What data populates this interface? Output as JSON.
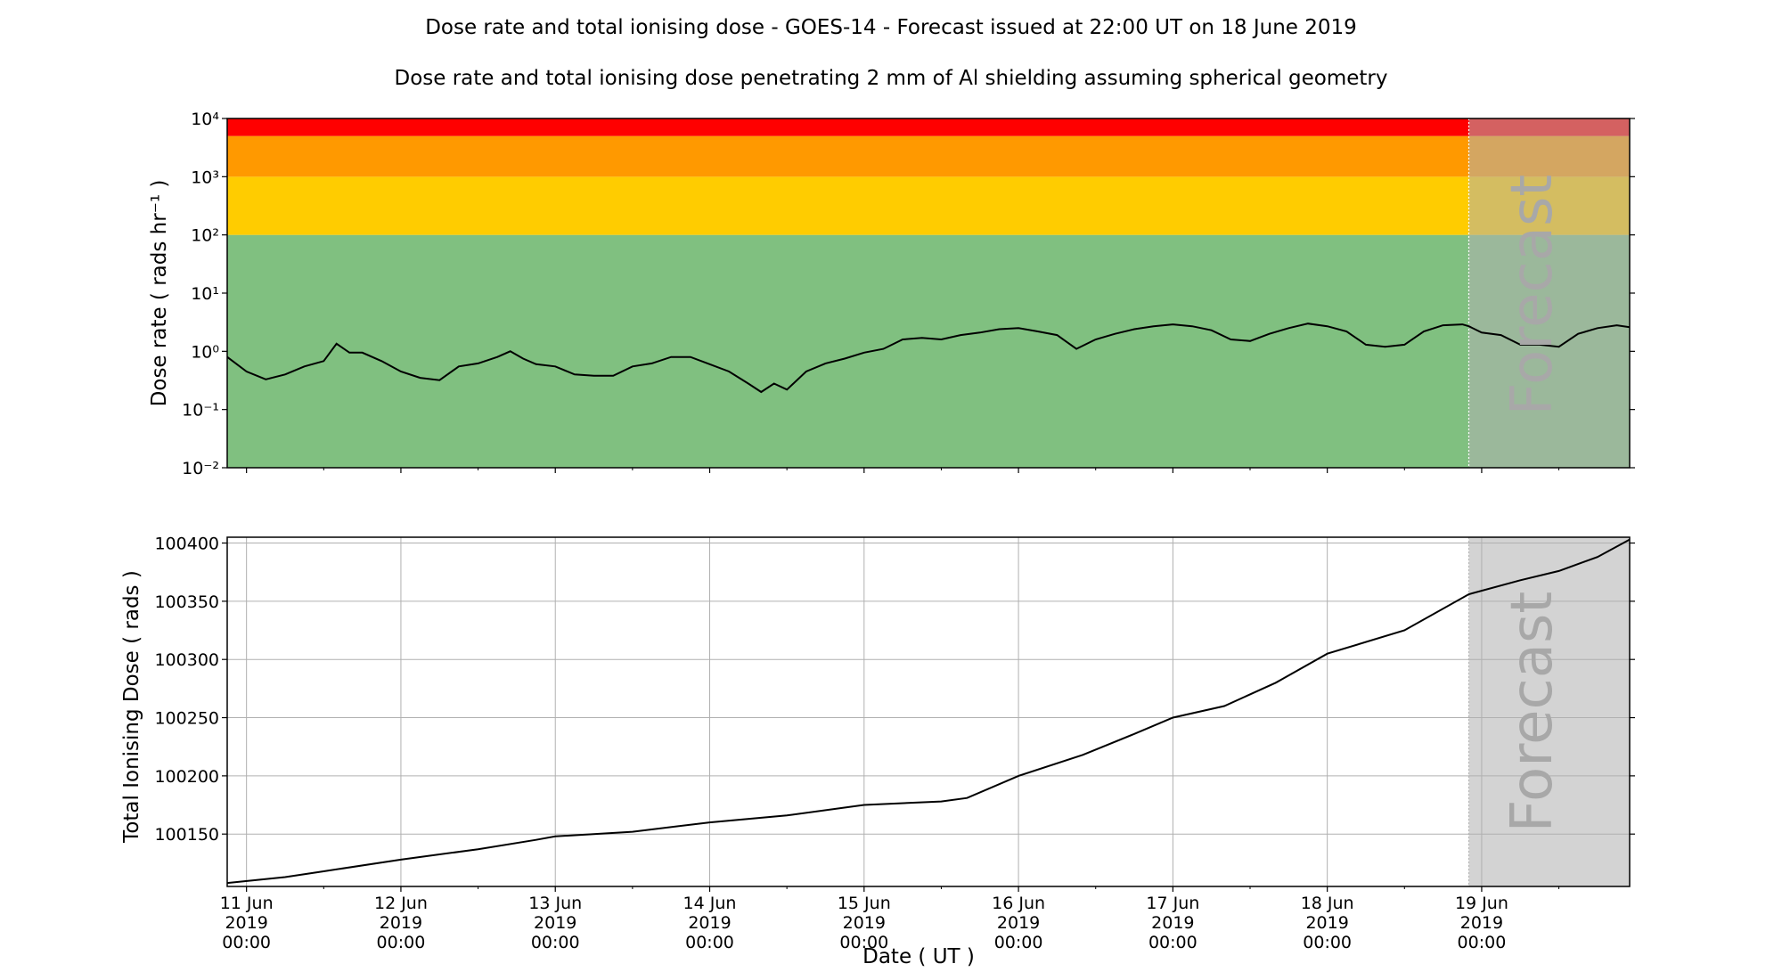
{
  "title": "Dose rate and total ionising dose - GOES-14 - Forecast issued at 22:00 UT on 18 June 2019",
  "subtitle": "Dose rate and total ionising dose penetrating 2 mm of Al shielding assuming spherical geometry",
  "forecast_label": "Forecast",
  "colors": {
    "green": "#80c080",
    "yellow": "#ffcc00",
    "orange": "#ff9900",
    "red": "#ff0000",
    "forecast_shade": "#d3d3d3",
    "line": "#000000"
  },
  "chart_data": [
    {
      "type": "line",
      "ylabel": "Dose rate ( rads hr⁻¹ )",
      "yscale": "log",
      "ylim": [
        0.01,
        10000
      ],
      "y_ticks": [
        "10⁻²",
        "10⁻¹",
        "10⁰",
        "10¹",
        "10²",
        "10³",
        "10⁴"
      ],
      "bands": [
        {
          "from": 0.01,
          "to": 100,
          "color": "green"
        },
        {
          "from": 100,
          "to": 1000,
          "color": "yellow"
        },
        {
          "from": 1000,
          "to": 5000,
          "color": "orange"
        },
        {
          "from": 5000,
          "to": 10000,
          "color": "red"
        }
      ],
      "forecast_start": "2019-06-18T22:00",
      "x": [
        "2019-06-10T21:00",
        "2019-06-11T00:00",
        "2019-06-11T03:00",
        "2019-06-11T06:00",
        "2019-06-11T09:00",
        "2019-06-11T12:00",
        "2019-06-11T14:00",
        "2019-06-11T16:00",
        "2019-06-11T18:00",
        "2019-06-11T21:00",
        "2019-06-12T00:00",
        "2019-06-12T03:00",
        "2019-06-12T06:00",
        "2019-06-12T09:00",
        "2019-06-12T12:00",
        "2019-06-12T15:00",
        "2019-06-12T17:00",
        "2019-06-12T19:00",
        "2019-06-12T21:00",
        "2019-06-13T00:00",
        "2019-06-13T03:00",
        "2019-06-13T06:00",
        "2019-06-13T09:00",
        "2019-06-13T12:00",
        "2019-06-13T15:00",
        "2019-06-13T18:00",
        "2019-06-13T21:00",
        "2019-06-14T00:00",
        "2019-06-14T03:00",
        "2019-06-14T06:00",
        "2019-06-14T08:00",
        "2019-06-14T10:00",
        "2019-06-14T12:00",
        "2019-06-14T15:00",
        "2019-06-14T18:00",
        "2019-06-14T21:00",
        "2019-06-15T00:00",
        "2019-06-15T03:00",
        "2019-06-15T06:00",
        "2019-06-15T09:00",
        "2019-06-15T12:00",
        "2019-06-15T15:00",
        "2019-06-15T18:00",
        "2019-06-15T21:00",
        "2019-06-16T00:00",
        "2019-06-16T03:00",
        "2019-06-16T06:00",
        "2019-06-16T09:00",
        "2019-06-16T12:00",
        "2019-06-16T15:00",
        "2019-06-16T18:00",
        "2019-06-16T21:00",
        "2019-06-17T00:00",
        "2019-06-17T03:00",
        "2019-06-17T06:00",
        "2019-06-17T09:00",
        "2019-06-17T12:00",
        "2019-06-17T15:00",
        "2019-06-17T18:00",
        "2019-06-17T21:00",
        "2019-06-18T00:00",
        "2019-06-18T03:00",
        "2019-06-18T06:00",
        "2019-06-18T09:00",
        "2019-06-18T12:00",
        "2019-06-18T15:00",
        "2019-06-18T18:00",
        "2019-06-18T21:00",
        "2019-06-18T22:00",
        "2019-06-19T00:00",
        "2019-06-19T03:00",
        "2019-06-19T06:00",
        "2019-06-19T09:00",
        "2019-06-19T12:00",
        "2019-06-19T15:00",
        "2019-06-19T18:00",
        "2019-06-19T21:00",
        "2019-06-19T23:00"
      ],
      "values": [
        0.8,
        0.45,
        0.33,
        0.4,
        0.55,
        0.68,
        1.35,
        0.95,
        0.95,
        0.68,
        0.45,
        0.35,
        0.32,
        0.55,
        0.62,
        0.8,
        1.0,
        0.75,
        0.6,
        0.55,
        0.4,
        0.38,
        0.38,
        0.55,
        0.62,
        0.8,
        0.8,
        0.6,
        0.45,
        0.28,
        0.2,
        0.28,
        0.22,
        0.45,
        0.62,
        0.75,
        0.95,
        1.1,
        1.6,
        1.7,
        1.6,
        1.9,
        2.1,
        2.4,
        2.5,
        2.2,
        1.9,
        1.1,
        1.6,
        2.0,
        2.4,
        2.7,
        2.9,
        2.7,
        2.3,
        1.6,
        1.5,
        2.0,
        2.5,
        3.0,
        2.7,
        2.2,
        1.3,
        1.2,
        1.3,
        2.2,
        2.8,
        2.9,
        2.7,
        2.1,
        1.9,
        1.3,
        1.3,
        1.2,
        2.0,
        2.5,
        2.8,
        2.6
      ]
    },
    {
      "type": "line",
      "ylabel": "Total Ionising Dose ( rads )",
      "xlabel": "Date ( UT )",
      "ylim": [
        100105,
        100405
      ],
      "y_ticks": [
        "100150",
        "100200",
        "100250",
        "100300",
        "100350",
        "100400"
      ],
      "x_ticks": [
        {
          "date": "11 Jun",
          "year": "2019",
          "time": "00:00"
        },
        {
          "date": "12 Jun",
          "year": "2019",
          "time": "00:00"
        },
        {
          "date": "13 Jun",
          "year": "2019",
          "time": "00:00"
        },
        {
          "date": "14 Jun",
          "year": "2019",
          "time": "00:00"
        },
        {
          "date": "15 Jun",
          "year": "2019",
          "time": "00:00"
        },
        {
          "date": "16 Jun",
          "year": "2019",
          "time": "00:00"
        },
        {
          "date": "17 Jun",
          "year": "2019",
          "time": "00:00"
        },
        {
          "date": "18 Jun",
          "year": "2019",
          "time": "00:00"
        },
        {
          "date": "19 Jun",
          "year": "2019",
          "time": "00:00"
        }
      ],
      "x_range": [
        "2019-06-10T21:00",
        "2019-06-19T23:00"
      ],
      "grid": true,
      "forecast_start": "2019-06-18T22:00",
      "x": [
        "2019-06-10T21:00",
        "2019-06-11T06:00",
        "2019-06-11T12:00",
        "2019-06-12T00:00",
        "2019-06-12T12:00",
        "2019-06-12T21:00",
        "2019-06-13T00:00",
        "2019-06-13T12:00",
        "2019-06-14T00:00",
        "2019-06-14T12:00",
        "2019-06-15T00:00",
        "2019-06-15T12:00",
        "2019-06-15T16:00",
        "2019-06-16T00:00",
        "2019-06-16T10:00",
        "2019-06-16T18:00",
        "2019-06-17T00:00",
        "2019-06-17T08:00",
        "2019-06-17T16:00",
        "2019-06-18T00:00",
        "2019-06-18T12:00",
        "2019-06-18T22:00",
        "2019-06-19T06:00",
        "2019-06-19T12:00",
        "2019-06-19T18:00",
        "2019-06-19T23:00"
      ],
      "values": [
        100108,
        100113,
        100118,
        100128,
        100137,
        100145,
        100148,
        100152,
        100160,
        100166,
        100175,
        100178,
        100181,
        100200,
        100218,
        100236,
        100250,
        100260,
        100280,
        100305,
        100325,
        100356,
        100368,
        100376,
        100388,
        100403
      ]
    }
  ]
}
